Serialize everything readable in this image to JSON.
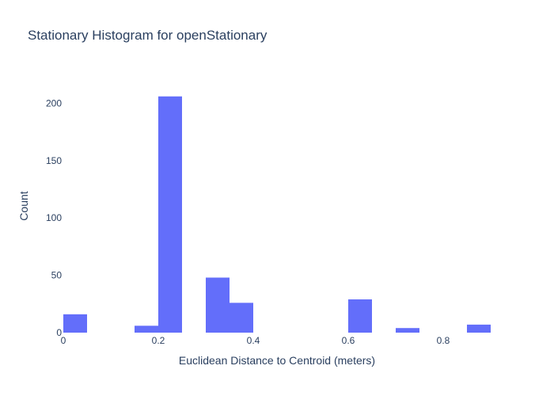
{
  "chart_data": {
    "type": "bar",
    "title": "Stationary Histogram for openStationary",
    "xlabel": "Euclidean Distance to Centroid (meters)",
    "ylabel": "Count",
    "bar_color": "#636efa",
    "text_color": "#2a3f5f",
    "bin_width": 0.05,
    "xlim": [
      0,
      0.9
    ],
    "ylim": [
      0,
      221
    ],
    "x_ticks": [
      0,
      0.2,
      0.4,
      0.6,
      0.8
    ],
    "x_tick_labels": [
      "0",
      "0.2",
      "0.4",
      "0.6",
      "0.8"
    ],
    "y_ticks": [
      0,
      50,
      100,
      150,
      200
    ],
    "y_tick_labels": [
      "0",
      "50",
      "100",
      "150",
      "200"
    ],
    "grid": false,
    "legend": "none",
    "bins": [
      {
        "start": 0.0,
        "count": 16
      },
      {
        "start": 0.15,
        "count": 6
      },
      {
        "start": 0.2,
        "count": 206
      },
      {
        "start": 0.3,
        "count": 48
      },
      {
        "start": 0.35,
        "count": 26
      },
      {
        "start": 0.6,
        "count": 29
      },
      {
        "start": 0.7,
        "count": 4
      },
      {
        "start": 0.85,
        "count": 7
      }
    ]
  }
}
